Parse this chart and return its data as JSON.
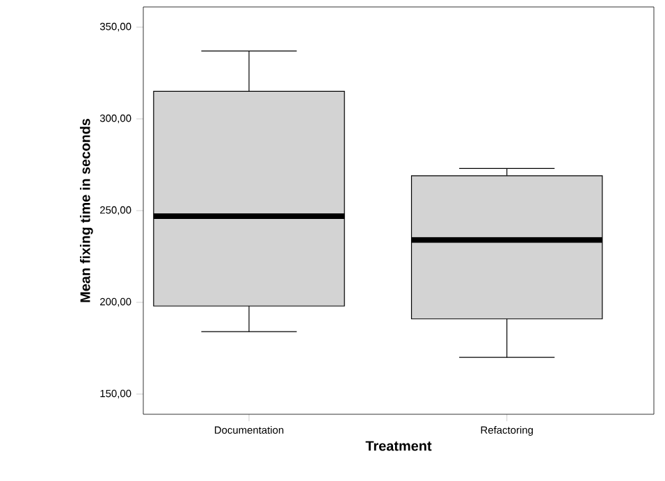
{
  "chart_data": {
    "type": "box",
    "xlabel": "Treatment",
    "ylabel": "Mean  fixing time in seconds",
    "categories": [
      "Documentation",
      "Refactoring"
    ],
    "color": "#d3d3d3",
    "boxes": [
      {
        "low": 184,
        "q1": 198,
        "median": 247,
        "q3": 315,
        "high": 337
      },
      {
        "low": 170,
        "q1": 191,
        "median": 234,
        "q3": 269,
        "high": 273
      }
    ],
    "ylim": [
      139,
      361
    ],
    "yticks": [
      {
        "value": 150,
        "label": "150,00"
      },
      {
        "value": 200,
        "label": "200,00"
      },
      {
        "value": 250,
        "label": "250,00"
      },
      {
        "value": 300,
        "label": "300,00"
      },
      {
        "value": 350,
        "label": "350,00"
      }
    ]
  }
}
